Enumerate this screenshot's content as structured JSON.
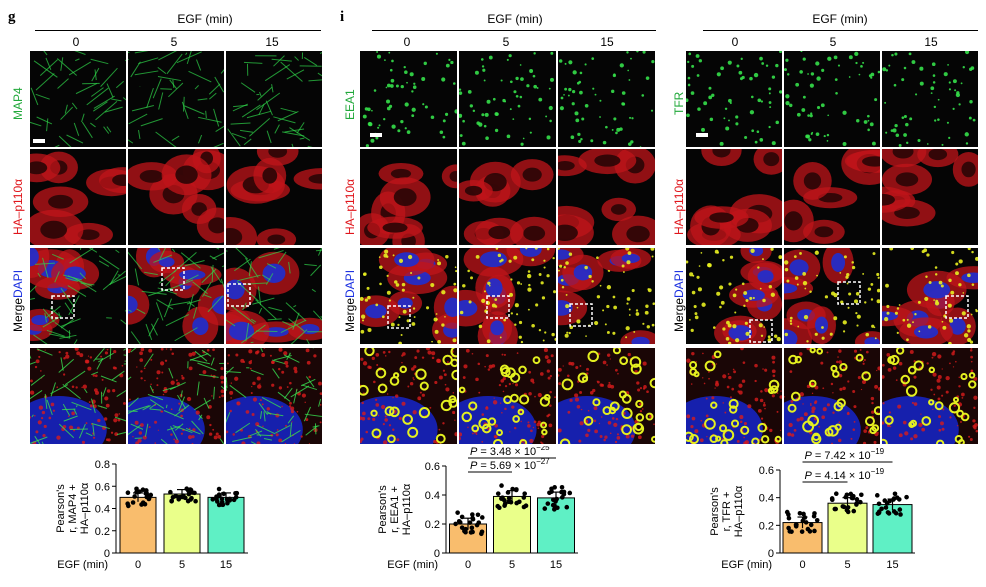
{
  "panels": [
    {
      "id": "g",
      "letter": "g",
      "egf_title": "EGF (min)",
      "timepoints": [
        "0",
        "5",
        "15"
      ],
      "row_labels": {
        "marker": "MAP4",
        "ha": "HA–p110α",
        "merge_prefix": "Merge",
        "merge_dapi": "DAPI"
      },
      "marker_color": "#21a83a",
      "chart": {
        "ylabel_lines": [
          "Pearson's",
          "r, MAP4 +",
          "HA–p110α"
        ],
        "xlabel": "EGF (min)",
        "yticks": [
          "0",
          "0.2",
          "0.4",
          "0.6",
          "0.8"
        ],
        "p_values": []
      }
    },
    {
      "id": "i",
      "letter": "i",
      "egf_title": "EGF (min)",
      "timepoints": [
        "0",
        "5",
        "15"
      ],
      "row_labels": {
        "marker": "EEA1",
        "ha": "HA–p110α",
        "merge_prefix": "Merge",
        "merge_dapi": "DAPI"
      },
      "marker_color": "#21a83a",
      "chart": {
        "ylabel_lines": [
          "Pearson's",
          "r, EEA1 +",
          "HA–p110α"
        ],
        "xlabel": "EGF (min)",
        "yticks": [
          "0",
          "0.2",
          "0.4",
          "0.6"
        ],
        "p_values": [
          "P = 3.48 × 10",
          "P = 5.69 × 10"
        ],
        "p_exponents": [
          "−25",
          "−27"
        ]
      }
    },
    {
      "id": "tfr",
      "letter": "",
      "egf_title": "EGF (min)",
      "timepoints": [
        "0",
        "5",
        "15"
      ],
      "row_labels": {
        "marker": "TFR",
        "ha": "HA–p110α",
        "merge_prefix": "Merge",
        "merge_dapi": "DAPI"
      },
      "marker_color": "#21a83a",
      "chart": {
        "ylabel_lines": [
          "Pearson's",
          "r, TFR +",
          "HA–p110α"
        ],
        "xlabel": "EGF (min)",
        "yticks": [
          "0",
          "0.2",
          "0.4",
          "0.6"
        ],
        "p_values": [
          "P = 7.42 × 10",
          "P = 4.14 × 10"
        ],
        "p_exponents": [
          "−19",
          "−19"
        ]
      }
    }
  ],
  "chart_data": [
    {
      "type": "bar",
      "categories": [
        "0",
        "5",
        "15"
      ],
      "values": [
        0.5,
        0.53,
        0.5
      ],
      "ylim": [
        0,
        0.8
      ],
      "xlabel": "EGF (min)",
      "ylabel": "Pearson's r, MAP4 + HA–p110α",
      "bar_colors": [
        "#f9bd6d",
        "#eaff8a",
        "#5ff0c5"
      ]
    },
    {
      "type": "bar",
      "categories": [
        "0",
        "5",
        "15"
      ],
      "values": [
        0.2,
        0.39,
        0.38
      ],
      "ylim": [
        0,
        0.6
      ],
      "xlabel": "EGF (min)",
      "ylabel": "Pearson's r, EEA1 + HA–p110α",
      "bar_colors": [
        "#f9bd6d",
        "#eaff8a",
        "#5ff0c5"
      ]
    },
    {
      "type": "bar",
      "categories": [
        "0",
        "5",
        "15"
      ],
      "values": [
        0.22,
        0.36,
        0.35
      ],
      "ylim": [
        0,
        0.6
      ],
      "xlabel": "EGF (min)",
      "ylabel": "Pearson's r, TFR + HA–p110α",
      "bar_colors": [
        "#f9bd6d",
        "#eaff8a",
        "#5ff0c5"
      ]
    }
  ]
}
